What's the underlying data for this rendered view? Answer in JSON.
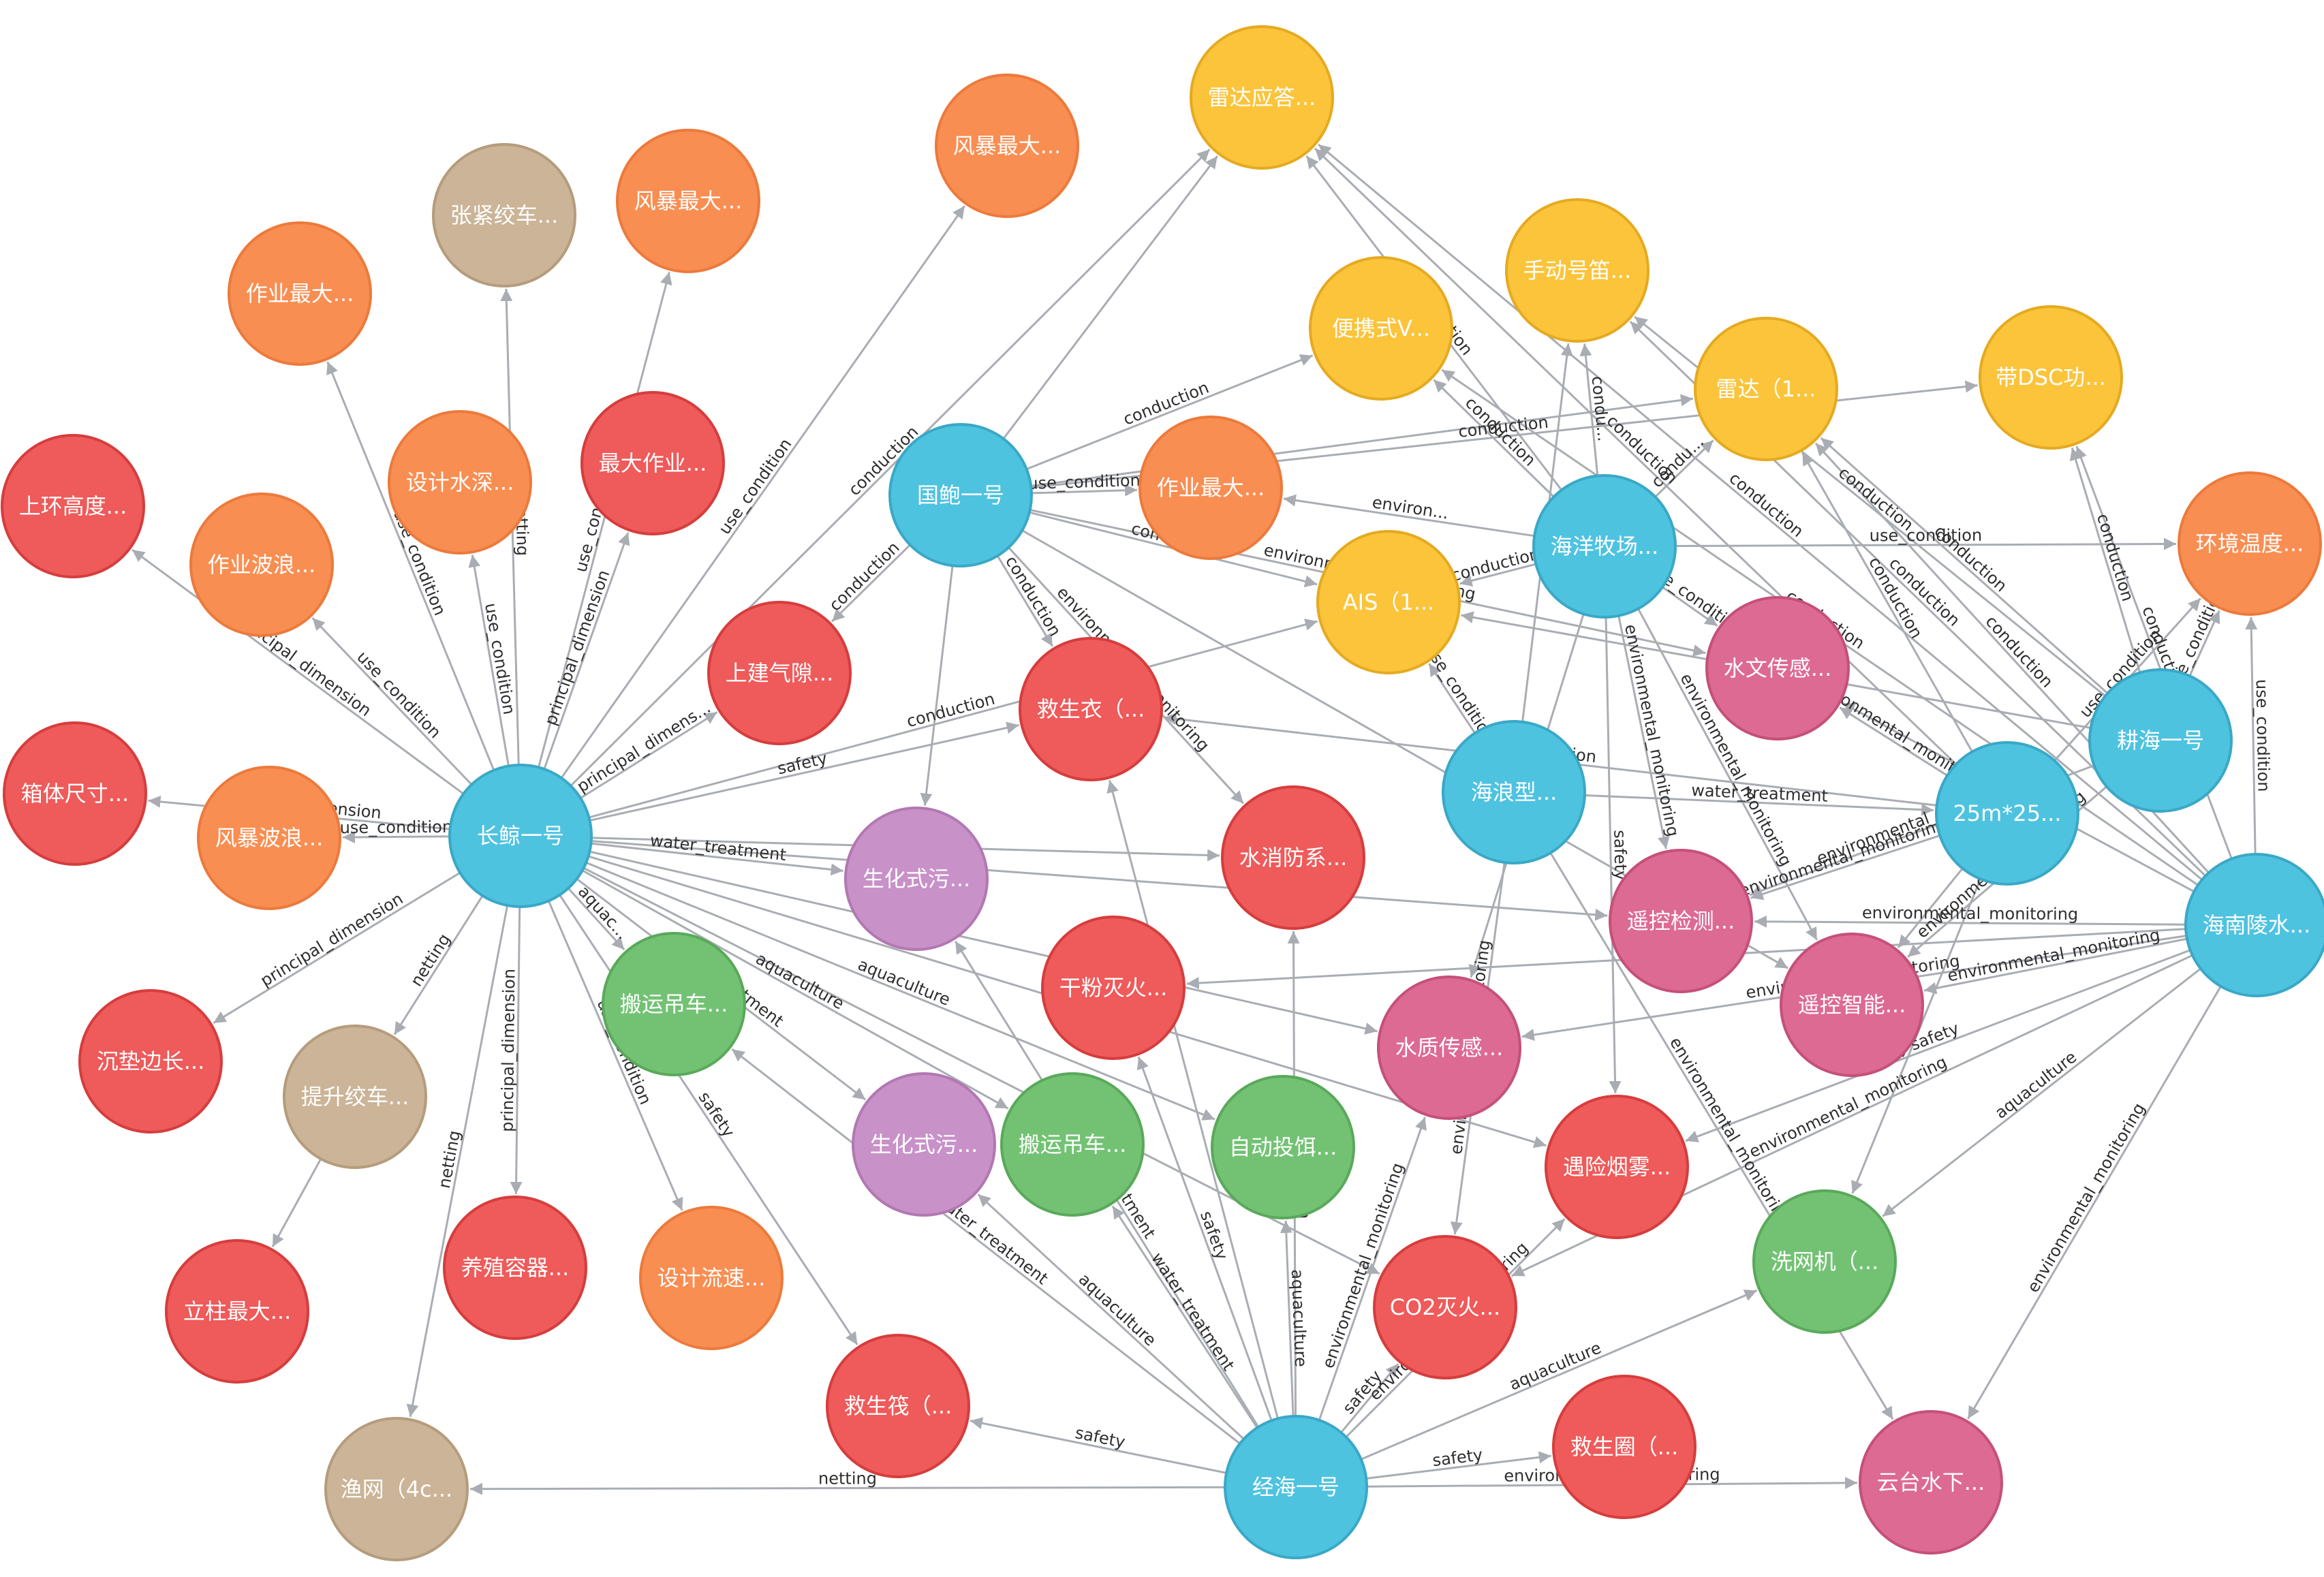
{
  "colors": {
    "blue": {
      "fill": "#4ec3e0",
      "stroke": "#3aa8c6"
    },
    "red": {
      "fill": "#ef5a5a",
      "stroke": "#d63d3d"
    },
    "orange": {
      "fill": "#f98e52",
      "stroke": "#ec7a3c"
    },
    "yellow": {
      "fill": "#fbc43b",
      "stroke": "#e5aa21"
    },
    "tan": {
      "fill": "#cbb497",
      "stroke": "#b59c7c"
    },
    "purple": {
      "fill": "#c891c8",
      "stroke": "#b278b2"
    },
    "pink": {
      "fill": "#dd6a93",
      "stroke": "#c55079"
    },
    "green": {
      "fill": "#73c274",
      "stroke": "#5aa95b"
    },
    "edge": "#a9adb3"
  },
  "nodes": [
    {
      "id": "changjing",
      "label": "长鲸一号",
      "color": "blue"
    },
    {
      "id": "guobao",
      "label": "国鲍一号",
      "color": "blue"
    },
    {
      "id": "haiyangmuchang",
      "label": "海洋牧场...",
      "color": "blue"
    },
    {
      "id": "hailangxing",
      "label": "海浪型...",
      "color": "blue"
    },
    {
      "id": "m25",
      "label": "25m*25...",
      "color": "blue"
    },
    {
      "id": "genghai",
      "label": "耕海一号",
      "color": "blue"
    },
    {
      "id": "hainanling",
      "label": "海南陵水...",
      "color": "blue"
    },
    {
      "id": "jinghai",
      "label": "经海一号",
      "color": "blue"
    },
    {
      "id": "leidayingda",
      "label": "雷达应答...",
      "color": "yellow"
    },
    {
      "id": "shoudong",
      "label": "手动号笛...",
      "color": "yellow"
    },
    {
      "id": "bianxie",
      "label": "便携式V...",
      "color": "yellow"
    },
    {
      "id": "leida",
      "label": "雷达（1...",
      "color": "yellow"
    },
    {
      "id": "dsc",
      "label": "带DSC功...",
      "color": "yellow"
    },
    {
      "id": "ais",
      "label": "AIS（1...",
      "color": "yellow"
    },
    {
      "id": "fengbao1",
      "label": "风暴最大...",
      "color": "orange"
    },
    {
      "id": "fengbao2",
      "label": "风暴最大...",
      "color": "orange"
    },
    {
      "id": "zuoye1",
      "label": "作业最大...",
      "color": "orange"
    },
    {
      "id": "sheji",
      "label": "设计水深...",
      "color": "orange"
    },
    {
      "id": "zuoyebolang",
      "label": "作业波浪...",
      "color": "orange"
    },
    {
      "id": "fengbaobolang",
      "label": "风暴波浪...",
      "color": "orange"
    },
    {
      "id": "zuoye2",
      "label": "作业最大...",
      "color": "orange"
    },
    {
      "id": "huanjing",
      "label": "环境温度...",
      "color": "orange"
    },
    {
      "id": "shejiliusu",
      "label": "设计流速...",
      "color": "orange"
    },
    {
      "id": "zhangjin",
      "label": "张紧绞车...",
      "color": "tan"
    },
    {
      "id": "tisheng",
      "label": "提升绞车...",
      "color": "tan"
    },
    {
      "id": "yuwang",
      "label": "渔网（4c...",
      "color": "tan"
    },
    {
      "id": "shanghuan",
      "label": "上环高度...",
      "color": "red"
    },
    {
      "id": "xiangti",
      "label": "箱体尺寸...",
      "color": "red"
    },
    {
      "id": "zuidazuoye",
      "label": "最大作业...",
      "color": "red"
    },
    {
      "id": "shangjian",
      "label": "上建气隙...",
      "color": "red"
    },
    {
      "id": "chendian",
      "label": "沉垫边长...",
      "color": "red"
    },
    {
      "id": "lizhu",
      "label": "立柱最大...",
      "color": "red"
    },
    {
      "id": "yangzhi",
      "label": "养殖容器...",
      "color": "red"
    },
    {
      "id": "jiushengyi",
      "label": "救生衣（...",
      "color": "red"
    },
    {
      "id": "shuixiao",
      "label": "水消防系...",
      "color": "red"
    },
    {
      "id": "ganfen",
      "label": "干粉灭火...",
      "color": "red"
    },
    {
      "id": "yuxian",
      "label": "遇险烟雾...",
      "color": "red"
    },
    {
      "id": "co2",
      "label": "CO2灭火...",
      "color": "red"
    },
    {
      "id": "jiushengfa",
      "label": "救生筏（...",
      "color": "red"
    },
    {
      "id": "jiushengquan",
      "label": "救生圈（...",
      "color": "red"
    },
    {
      "id": "shengwu1",
      "label": "生化式污...",
      "color": "purple"
    },
    {
      "id": "shengwu2",
      "label": "生化式污...",
      "color": "purple"
    },
    {
      "id": "shuiwen",
      "label": "水文传感...",
      "color": "pink"
    },
    {
      "id": "yaokongjiance",
      "label": "遥控检测...",
      "color": "pink"
    },
    {
      "id": "yaokongzhineng",
      "label": "遥控智能...",
      "color": "pink"
    },
    {
      "id": "shuizhi",
      "label": "水质传感...",
      "color": "pink"
    },
    {
      "id": "yuntai",
      "label": "云台水下...",
      "color": "pink"
    },
    {
      "id": "banyun1",
      "label": "搬运吊车...",
      "color": "green"
    },
    {
      "id": "banyun2",
      "label": "搬运吊车...",
      "color": "green"
    },
    {
      "id": "zidong",
      "label": "自动投饵...",
      "color": "green"
    },
    {
      "id": "xiwangji",
      "label": "洗网机（...",
      "color": "green"
    }
  ],
  "edges": [
    {
      "s": "changjing",
      "t": "shanghuan",
      "label": "principal_dimension"
    },
    {
      "s": "changjing",
      "t": "zuoye1",
      "label": "use_condition"
    },
    {
      "s": "changjing",
      "t": "zuoyebolang",
      "label": "use_condition"
    },
    {
      "s": "changjing",
      "t": "zhangjin",
      "label": "netting"
    },
    {
      "s": "changjing",
      "t": "sheji",
      "label": "use_condition"
    },
    {
      "s": "changjing",
      "t": "fengbao2",
      "label": "use_condition"
    },
    {
      "s": "changjing",
      "t": "zuidazuoye",
      "label": "principal_dimension"
    },
    {
      "s": "changjing",
      "t": "fengbao1",
      "label": "use_condition"
    },
    {
      "s": "changjing",
      "t": "leidayingda",
      "label": "conduction"
    },
    {
      "s": "changjing",
      "t": "xiangti",
      "label": "principal_dimension"
    },
    {
      "s": "changjing",
      "t": "fengbaobolang",
      "label": "use_condition"
    },
    {
      "s": "changjing",
      "t": "chendian",
      "label": "principal_dimension"
    },
    {
      "s": "changjing",
      "t": "tisheng",
      "label": "netting"
    },
    {
      "s": "changjing",
      "t": "yangzhi",
      "label": "principal_dimension"
    },
    {
      "s": "changjing",
      "t": "shejiliusu",
      "label": "use_condition"
    },
    {
      "s": "changjing",
      "t": "yuwang",
      "label": "netting"
    },
    {
      "s": "changjing",
      "t": "jiushengfa",
      "label": "safety"
    },
    {
      "s": "changjing",
      "t": "banyun1",
      "label": "aquac..."
    },
    {
      "s": "changjing",
      "t": "shangjian",
      "label": "principal_dimens..."
    },
    {
      "s": "changjing",
      "t": "shengwu1",
      "label": "water_treatment"
    },
    {
      "s": "changjing",
      "t": "jiushengyi",
      "label": "safety"
    },
    {
      "s": "changjing",
      "t": "shuixiao",
      "label": ""
    },
    {
      "s": "changjing",
      "t": "ais",
      "label": "conduction"
    },
    {
      "s": "changjing",
      "t": "shengwu2",
      "label": "water_treatment"
    },
    {
      "s": "changjing",
      "t": "banyun2",
      "label": "aquaculture"
    },
    {
      "s": "changjing",
      "t": "yaokongjiance",
      "label": ""
    },
    {
      "s": "changjing",
      "t": "zidong",
      "label": "aquaculture"
    },
    {
      "s": "changjing",
      "t": "yuxian",
      "label": "safety"
    },
    {
      "s": "changjing",
      "t": "shuizhi",
      "label": ""
    },
    {
      "s": "changjing",
      "t": "co2",
      "label": ""
    },
    {
      "s": "tisheng",
      "t": "lizhu",
      "label": ""
    },
    {
      "s": "guobao",
      "t": "leidayingda",
      "label": ""
    },
    {
      "s": "guobao",
      "t": "bianxie",
      "label": "conduction"
    },
    {
      "s": "guobao",
      "t": "zuoye2",
      "label": "use_condition"
    },
    {
      "s": "guobao",
      "t": "shangjian",
      "label": "conduction"
    },
    {
      "s": "guobao",
      "t": "jiushengyi",
      "label": "conduction"
    },
    {
      "s": "guobao",
      "t": "shuiwen",
      "label": "environmental_monitoring"
    },
    {
      "s": "guobao",
      "t": "shuixiao",
      "label": "environmental_monitoring"
    },
    {
      "s": "guobao",
      "t": "dsc",
      "label": "conduction"
    },
    {
      "s": "guobao",
      "t": "leida",
      "label": ""
    },
    {
      "s": "guobao",
      "t": "ais",
      "label": "conduction"
    },
    {
      "s": "guobao",
      "t": "yaokongzhineng",
      "label": ""
    },
    {
      "s": "guobao",
      "t": "shengwu1",
      "label": ""
    },
    {
      "s": "haiyangmuchang",
      "t": "bianxie",
      "label": "conduction"
    },
    {
      "s": "haiyangmuchang",
      "t": "zuoye2",
      "label": "environ..."
    },
    {
      "s": "haiyangmuchang",
      "t": "ais",
      "label": "conduction"
    },
    {
      "s": "haiyangmuchang",
      "t": "huanjing",
      "label": "use_condition"
    },
    {
      "s": "haiyangmuchang",
      "t": "leidayingda",
      "label": "conduction"
    },
    {
      "s": "haiyangmuchang",
      "t": "shoudong",
      "label": "condu..."
    },
    {
      "s": "haiyangmuchang",
      "t": "leida",
      "label": "condu..."
    },
    {
      "s": "haiyangmuchang",
      "t": "shuiwen",
      "label": "use_condition"
    },
    {
      "s": "haiyangmuchang",
      "t": "yaokongjiance",
      "label": "environmental_monitoring"
    },
    {
      "s": "haiyangmuchang",
      "t": "yaokongzhineng",
      "label": "environmental_monitoring"
    },
    {
      "s": "haiyangmuchang",
      "t": "yuxian",
      "label": "safety"
    },
    {
      "s": "haiyangmuchang",
      "t": "shuizhi",
      "label": "conduction"
    },
    {
      "s": "hailangxing",
      "t": "ais",
      "label": "use_condition"
    },
    {
      "s": "hailangxing",
      "t": "shoudong",
      "label": ""
    },
    {
      "s": "hailangxing",
      "t": "m25",
      "label": "water_treatment"
    },
    {
      "s": "hailangxing",
      "t": "co2",
      "label": "environmental_monitoring"
    },
    {
      "s": "hailangxing",
      "t": "yuntai",
      "label": "environmental_monitoring"
    },
    {
      "s": "m25",
      "t": "huanjing",
      "label": "use_condition"
    },
    {
      "s": "m25",
      "t": "leida",
      "label": "conduction"
    },
    {
      "s": "m25",
      "t": "shuiwen",
      "label": "environmental_monitoring"
    },
    {
      "s": "m25",
      "t": "jiushengyi",
      "label": "conduction"
    },
    {
      "s": "m25",
      "t": "yaokongjiance",
      "label": "environmental_monitoring"
    },
    {
      "s": "m25",
      "t": "yaokongzhineng",
      "label": ""
    },
    {
      "s": "m25",
      "t": "xiwangji",
      "label": "safety"
    },
    {
      "s": "m25",
      "t": "leidayingda",
      "label": "conduction"
    },
    {
      "s": "genghai",
      "t": "huanjing",
      "label": "use_condition"
    },
    {
      "s": "genghai",
      "t": "dsc",
      "label": "conduction"
    },
    {
      "s": "genghai",
      "t": "leida",
      "label": "conduction"
    },
    {
      "s": "genghai",
      "t": "shoudong",
      "label": "conduction"
    },
    {
      "s": "genghai",
      "t": "yaokongzhineng",
      "label": "environmental_monitoring"
    },
    {
      "s": "genghai",
      "t": "yaokongjiance",
      "label": "environmental_monitoring"
    },
    {
      "s": "genghai",
      "t": "ais",
      "label": "conduction"
    },
    {
      "s": "hainanling",
      "t": "huanjing",
      "label": "use_condition"
    },
    {
      "s": "hainanling",
      "t": "dsc",
      "label": "conduction"
    },
    {
      "s": "hainanling",
      "t": "leida",
      "label": "conduction"
    },
    {
      "s": "hainanling",
      "t": "shoudong",
      "label": "conduction"
    },
    {
      "s": "hainanling",
      "t": "leidayingda",
      "label": "conduction"
    },
    {
      "s": "hainanling",
      "t": "shuiwen",
      "label": "use_condition"
    },
    {
      "s": "hainanling",
      "t": "yaokongjiance",
      "label": "environmental_monitoring"
    },
    {
      "s": "hainanling",
      "t": "yaokongzhineng",
      "label": "environmental_monitoring"
    },
    {
      "s": "hainanling",
      "t": "shuizhi",
      "label": "environmental_monitoring"
    },
    {
      "s": "hainanling",
      "t": "xiwangji",
      "label": "aquaculture"
    },
    {
      "s": "hainanling",
      "t": "yuntai",
      "label": "environmental_monitoring"
    },
    {
      "s": "hainanling",
      "t": "yuxian",
      "label": "safety"
    },
    {
      "s": "hainanling",
      "t": "co2",
      "label": "environmental_monitoring"
    },
    {
      "s": "hainanling",
      "t": "ganfen",
      "label": ""
    },
    {
      "s": "hainanling",
      "t": "bianxie",
      "label": "conduction"
    },
    {
      "s": "jinghai",
      "t": "yuwang",
      "label": "netting"
    },
    {
      "s": "jinghai",
      "t": "jiushengfa",
      "label": "safety"
    },
    {
      "s": "jinghai",
      "t": "jiushengquan",
      "label": "safety"
    },
    {
      "s": "jinghai",
      "t": "yuntai",
      "label": "environmental_monitoring"
    },
    {
      "s": "jinghai",
      "t": "shengwu2",
      "label": "aquaculture"
    },
    {
      "s": "jinghai",
      "t": "banyun2",
      "label": "water_treatment"
    },
    {
      "s": "jinghai",
      "t": "zidong",
      "label": "aquaculture"
    },
    {
      "s": "jinghai",
      "t": "co2",
      "label": "safety"
    },
    {
      "s": "jinghai",
      "t": "yuxian",
      "label": "environmental_monitoring"
    },
    {
      "s": "jinghai",
      "t": "xiwangji",
      "label": "aquaculture"
    },
    {
      "s": "jinghai",
      "t": "shuizhi",
      "label": "environmental_monitoring"
    },
    {
      "s": "jinghai",
      "t": "banyun1",
      "label": "water_treatment"
    },
    {
      "s": "jinghai",
      "t": "ganfen",
      "label": "safety"
    },
    {
      "s": "jinghai",
      "t": "shengwu1",
      "label": "water_treatment"
    },
    {
      "s": "jinghai",
      "t": "jiushengyi",
      "label": ""
    },
    {
      "s": "jinghai",
      "t": "shuixiao",
      "label": "conduction"
    }
  ]
}
